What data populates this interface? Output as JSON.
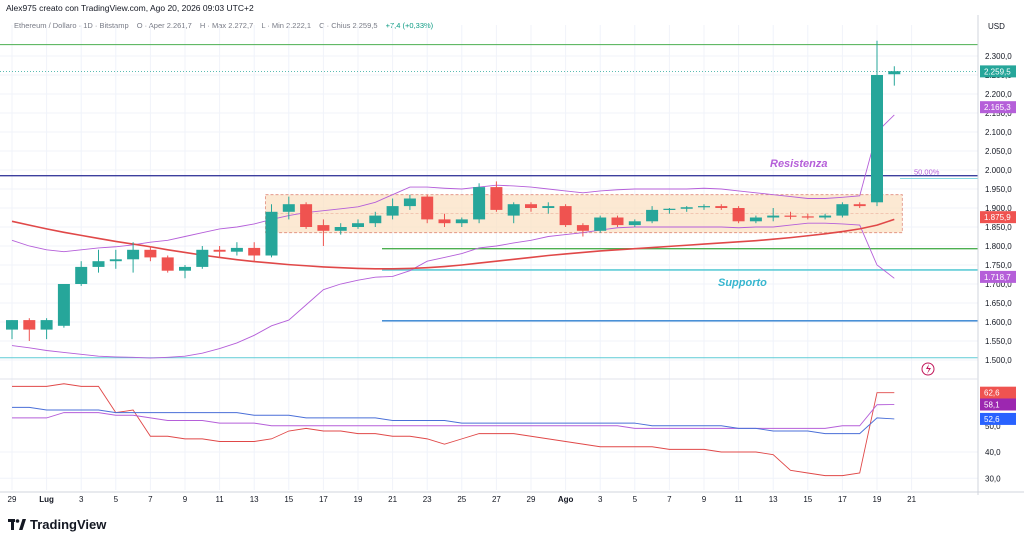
{
  "header": {
    "text": "Alex975 creato con TradingView.com, Ago 20, 2026 09:03 UTC+2"
  },
  "legend": {
    "symbol": "Ethereum / Dollaro · 1D · Bitstamp",
    "open": "O · Aper 2.261,7",
    "high": "H · Max 2.272,7",
    "low": "L · Min 2.222,1",
    "close": "C · Chius 2.259,5",
    "change": "+7,4 (+0,33%)"
  },
  "brand": {
    "name": "TradingView"
  },
  "colors": {
    "up": "#26a69a",
    "down": "#ef5350",
    "ma_red": "#e04848",
    "bb": "#b55fd9",
    "resistance_line": "#3d3f9e",
    "resistance_label": "#b55fd9",
    "support_label": "#36b6cf",
    "green_line": "#4caf50",
    "blue_line": "#2f80d0",
    "cyan_line": "#5fcbd6",
    "range_box_fill": "#fbe1c4",
    "range_box_border": "#e08a7a"
  },
  "chart_data": [
    {
      "type": "candlestick",
      "title": "",
      "ylabel": "USD",
      "ylim": [
        1480,
        2350
      ],
      "x_ticks": [
        "29",
        "Lug",
        "3",
        "5",
        "7",
        "9",
        "11",
        "13",
        "15",
        "17",
        "19",
        "21",
        "23",
        "25",
        "27",
        "29",
        "Ago",
        "3",
        "5",
        "7",
        "9",
        "11",
        "13",
        "15",
        "17",
        "19",
        "21"
      ],
      "y_ticks": [
        "2.300,0",
        "2.250,0",
        "2.200,0",
        "2.150,0",
        "2.100,0",
        "2.050,0",
        "2.000,0",
        "1.950,0",
        "1.900,0",
        "1.850,0",
        "1.800,0",
        "1.750,0",
        "1.700,0",
        "1.650,0",
        "1.600,0",
        "1.550,0",
        "1.500,0"
      ],
      "y_tick_values": [
        2300,
        2250,
        2200,
        2150,
        2100,
        2050,
        2000,
        1950,
        1900,
        1850,
        1800,
        1750,
        1700,
        1650,
        1600,
        1550,
        1500
      ],
      "candles": [
        {
          "o": 1580,
          "h": 1600,
          "l": 1555,
          "c": 1605
        },
        {
          "o": 1605,
          "h": 1610,
          "l": 1550,
          "c": 1580
        },
        {
          "o": 1580,
          "h": 1610,
          "l": 1555,
          "c": 1605
        },
        {
          "o": 1590,
          "h": 1700,
          "l": 1585,
          "c": 1700
        },
        {
          "o": 1700,
          "h": 1760,
          "l": 1695,
          "c": 1745
        },
        {
          "o": 1745,
          "h": 1790,
          "l": 1730,
          "c": 1760
        },
        {
          "o": 1760,
          "h": 1790,
          "l": 1740,
          "c": 1765
        },
        {
          "o": 1765,
          "h": 1810,
          "l": 1730,
          "c": 1790
        },
        {
          "o": 1790,
          "h": 1800,
          "l": 1760,
          "c": 1770
        },
        {
          "o": 1770,
          "h": 1775,
          "l": 1730,
          "c": 1735
        },
        {
          "o": 1735,
          "h": 1750,
          "l": 1715,
          "c": 1745
        },
        {
          "o": 1745,
          "h": 1800,
          "l": 1740,
          "c": 1790
        },
        {
          "o": 1790,
          "h": 1800,
          "l": 1770,
          "c": 1785
        },
        {
          "o": 1785,
          "h": 1810,
          "l": 1775,
          "c": 1795
        },
        {
          "o": 1795,
          "h": 1810,
          "l": 1760,
          "c": 1775
        },
        {
          "o": 1775,
          "h": 1910,
          "l": 1770,
          "c": 1890
        },
        {
          "o": 1890,
          "h": 1930,
          "l": 1870,
          "c": 1910
        },
        {
          "o": 1910,
          "h": 1915,
          "l": 1845,
          "c": 1850
        },
        {
          "o": 1855,
          "h": 1870,
          "l": 1800,
          "c": 1840
        },
        {
          "o": 1840,
          "h": 1860,
          "l": 1830,
          "c": 1850
        },
        {
          "o": 1850,
          "h": 1870,
          "l": 1845,
          "c": 1860
        },
        {
          "o": 1860,
          "h": 1890,
          "l": 1850,
          "c": 1880
        },
        {
          "o": 1880,
          "h": 1925,
          "l": 1870,
          "c": 1905
        },
        {
          "o": 1905,
          "h": 1935,
          "l": 1895,
          "c": 1925
        },
        {
          "o": 1930,
          "h": 1935,
          "l": 1860,
          "c": 1870
        },
        {
          "o": 1870,
          "h": 1885,
          "l": 1850,
          "c": 1860
        },
        {
          "o": 1860,
          "h": 1875,
          "l": 1850,
          "c": 1870
        },
        {
          "o": 1870,
          "h": 1965,
          "l": 1860,
          "c": 1955
        },
        {
          "o": 1955,
          "h": 1970,
          "l": 1890,
          "c": 1895
        },
        {
          "o": 1880,
          "h": 1915,
          "l": 1860,
          "c": 1910
        },
        {
          "o": 1910,
          "h": 1915,
          "l": 1890,
          "c": 1900
        },
        {
          "o": 1900,
          "h": 1915,
          "l": 1885,
          "c": 1905
        },
        {
          "o": 1905,
          "h": 1910,
          "l": 1850,
          "c": 1855
        },
        {
          "o": 1855,
          "h": 1860,
          "l": 1825,
          "c": 1840
        },
        {
          "o": 1840,
          "h": 1880,
          "l": 1835,
          "c": 1875
        },
        {
          "o": 1875,
          "h": 1880,
          "l": 1850,
          "c": 1855
        },
        {
          "o": 1855,
          "h": 1870,
          "l": 1850,
          "c": 1865
        },
        {
          "o": 1865,
          "h": 1905,
          "l": 1860,
          "c": 1895
        },
        {
          "o": 1895,
          "h": 1900,
          "l": 1885,
          "c": 1898
        },
        {
          "o": 1898,
          "h": 1905,
          "l": 1890,
          "c": 1902
        },
        {
          "o": 1902,
          "h": 1910,
          "l": 1895,
          "c": 1905
        },
        {
          "o": 1905,
          "h": 1910,
          "l": 1895,
          "c": 1900
        },
        {
          "o": 1900,
          "h": 1905,
          "l": 1860,
          "c": 1865
        },
        {
          "o": 1865,
          "h": 1880,
          "l": 1860,
          "c": 1875
        },
        {
          "o": 1875,
          "h": 1900,
          "l": 1865,
          "c": 1880
        },
        {
          "o": 1880,
          "h": 1890,
          "l": 1870,
          "c": 1878
        },
        {
          "o": 1878,
          "h": 1885,
          "l": 1870,
          "c": 1875
        },
        {
          "o": 1875,
          "h": 1885,
          "l": 1870,
          "c": 1880
        },
        {
          "o": 1880,
          "h": 1915,
          "l": 1875,
          "c": 1910
        },
        {
          "o": 1910,
          "h": 1915,
          "l": 1900,
          "c": 1905
        },
        {
          "o": 1915,
          "h": 2340,
          "l": 1905,
          "c": 2250
        },
        {
          "o": 2252,
          "h": 2273,
          "l": 2222,
          "c": 2260
        }
      ],
      "moving_average": [
        1865,
        1855,
        1845,
        1836,
        1828,
        1820,
        1812,
        1805,
        1798,
        1790,
        1783,
        1776,
        1770,
        1764,
        1759,
        1755,
        1751,
        1748,
        1745,
        1743,
        1741,
        1740,
        1740,
        1741,
        1743,
        1746,
        1750,
        1755,
        1760,
        1765,
        1770,
        1775,
        1779,
        1783,
        1787,
        1790,
        1793,
        1796,
        1799,
        1802,
        1805,
        1808,
        1811,
        1814,
        1818,
        1822,
        1827,
        1832,
        1838,
        1845,
        1855,
        1870
      ],
      "bollinger_upper": [
        1815,
        1800,
        1790,
        1785,
        1790,
        1795,
        1798,
        1803,
        1810,
        1815,
        1825,
        1835,
        1845,
        1850,
        1858,
        1870,
        1880,
        1888,
        1893,
        1898,
        1903,
        1915,
        1935,
        1955,
        1955,
        1952,
        1950,
        1955,
        1960,
        1958,
        1955,
        1950,
        1945,
        1940,
        1945,
        1948,
        1950,
        1950,
        1950,
        1950,
        1952,
        1950,
        1945,
        1940,
        1935,
        1930,
        1925,
        1925,
        1928,
        1932,
        2100,
        2145
      ],
      "bollinger_lower": [
        1538,
        1532,
        1525,
        1520,
        1515,
        1510,
        1508,
        1507,
        1505,
        1507,
        1510,
        1518,
        1530,
        1545,
        1565,
        1590,
        1605,
        1645,
        1685,
        1700,
        1710,
        1718,
        1720,
        1735,
        1760,
        1770,
        1780,
        1795,
        1800,
        1808,
        1815,
        1825,
        1830,
        1835,
        1842,
        1848,
        1850,
        1850,
        1850,
        1850,
        1850,
        1850,
        1848,
        1850,
        1850,
        1855,
        1860,
        1860,
        1858,
        1855,
        1750,
        1715
      ],
      "levels": [
        {
          "name": "resistance",
          "value": 1985
        },
        {
          "name": "support",
          "value": 1737
        },
        {
          "name": "green-level",
          "value": 1793
        },
        {
          "name": "blue-level",
          "value": 1603
        },
        {
          "name": "cyan-level",
          "value": 1506
        },
        {
          "name": "top-green-level",
          "value": 2330
        }
      ],
      "annotations": {
        "resistance_label": "Resistenza",
        "support_label": "Supporto",
        "fib_label": "50,00%",
        "fib_value": 1978,
        "range_box": {
          "y_top": 1935,
          "y_bottom": 1835,
          "x_start_index": 15,
          "x_end_index": 51
        },
        "range_dashed_mid": 1885
      },
      "price_badges": [
        {
          "label": "2.259,5",
          "value": 2259.5,
          "color": "#26a69a"
        },
        {
          "label": "2.165,3",
          "value": 2165.3,
          "color": "#b55fd9"
        },
        {
          "label": "1.875,9",
          "value": 1875.9,
          "color": "#ef5350"
        },
        {
          "label": "1.718,7",
          "value": 1718.7,
          "color": "#b55fd9"
        }
      ]
    },
    {
      "type": "line",
      "title": "",
      "ylim": [
        25,
        70
      ],
      "y_ticks": [
        "40,0",
        "30,0"
      ],
      "y_tick_values": [
        40,
        30
      ],
      "series": [
        {
          "name": "",
          "color": "#e04848",
          "values": [
            65,
            65,
            65,
            66,
            65,
            65,
            55,
            56,
            46,
            46,
            45,
            45,
            44,
            44,
            44,
            45,
            48,
            49,
            48,
            48,
            47,
            47,
            46,
            46,
            45,
            43,
            45,
            47,
            47,
            47,
            46,
            45,
            44,
            43,
            42,
            42,
            42,
            42,
            41,
            41,
            41,
            40,
            40,
            40,
            39,
            33,
            32,
            31,
            31,
            32,
            62.6,
            62.6
          ]
        },
        {
          "name": "",
          "color": "#b55fd9",
          "values": [
            53,
            53,
            53,
            55,
            55,
            55,
            54,
            54,
            53,
            52,
            52,
            52,
            51,
            51,
            51,
            50,
            50,
            50,
            50,
            50,
            50,
            50,
            50,
            50,
            50,
            50,
            50,
            50,
            50,
            50,
            50,
            50,
            50,
            50,
            50,
            50,
            49,
            49,
            49,
            49,
            49,
            49,
            49,
            49,
            49,
            49,
            49,
            49,
            50,
            50,
            58,
            58.1
          ]
        },
        {
          "name": "",
          "color": "#4a6fd8",
          "values": [
            57,
            57,
            56,
            56,
            56,
            56,
            55,
            55,
            55,
            55,
            55,
            55,
            55,
            55,
            54,
            54,
            54,
            53,
            53,
            53,
            53,
            53,
            52,
            52,
            52,
            52,
            51,
            51,
            51,
            51,
            51,
            51,
            51,
            51,
            51,
            51,
            51,
            50,
            50,
            50,
            50,
            50,
            49,
            49,
            48,
            48,
            48,
            47,
            47,
            47,
            53,
            52.6
          ]
        }
      ],
      "badges": [
        {
          "label": "62,6",
          "value": 62.6,
          "color": "#ef5350"
        },
        {
          "label": "58,1",
          "value": 58.1,
          "color": "#9c27b0"
        },
        {
          "label": "52,6",
          "value": 52.6,
          "color": "#2962ff"
        }
      ],
      "partial_tick": "50,0"
    }
  ]
}
